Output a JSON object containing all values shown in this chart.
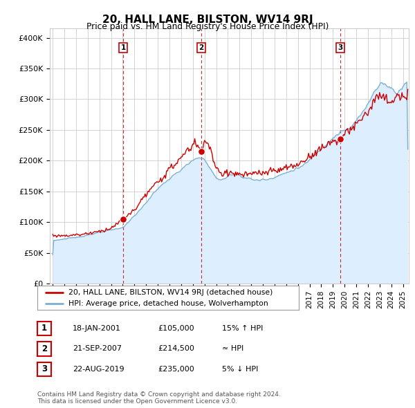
{
  "title": "20, HALL LANE, BILSTON, WV14 9RJ",
  "subtitle": "Price paid vs. HM Land Registry's House Price Index (HPI)",
  "ylabel_ticks": [
    "£0",
    "£50K",
    "£100K",
    "£150K",
    "£200K",
    "£250K",
    "£300K",
    "£350K",
    "£400K"
  ],
  "ytick_values": [
    0,
    50000,
    100000,
    150000,
    200000,
    250000,
    300000,
    350000,
    400000
  ],
  "ylim": [
    0,
    415000
  ],
  "xlim_start": 1994.75,
  "xlim_end": 2025.5,
  "sale_dates": [
    2001.05,
    2007.72,
    2019.64
  ],
  "sale_prices": [
    105000,
    214500,
    235000
  ],
  "sale_labels": [
    "1",
    "2",
    "3"
  ],
  "red_line_color": "#cc0000",
  "blue_line_color": "#7ab0d4",
  "blue_fill_color": "#ddeeff",
  "sale_marker_color": "#cc0000",
  "grid_color": "#cccccc",
  "background_color": "#ffffff",
  "legend_entries": [
    "20, HALL LANE, BILSTON, WV14 9RJ (detached house)",
    "HPI: Average price, detached house, Wolverhampton"
  ],
  "table_data": [
    [
      "1",
      "18-JAN-2001",
      "£105,000",
      "15% ↑ HPI"
    ],
    [
      "2",
      "21-SEP-2007",
      "£214,500",
      "≈ HPI"
    ],
    [
      "3",
      "22-AUG-2019",
      "£235,000",
      "5% ↓ HPI"
    ]
  ],
  "footer_text": "Contains HM Land Registry data © Crown copyright and database right 2024.\nThis data is licensed under the Open Government Licence v3.0."
}
